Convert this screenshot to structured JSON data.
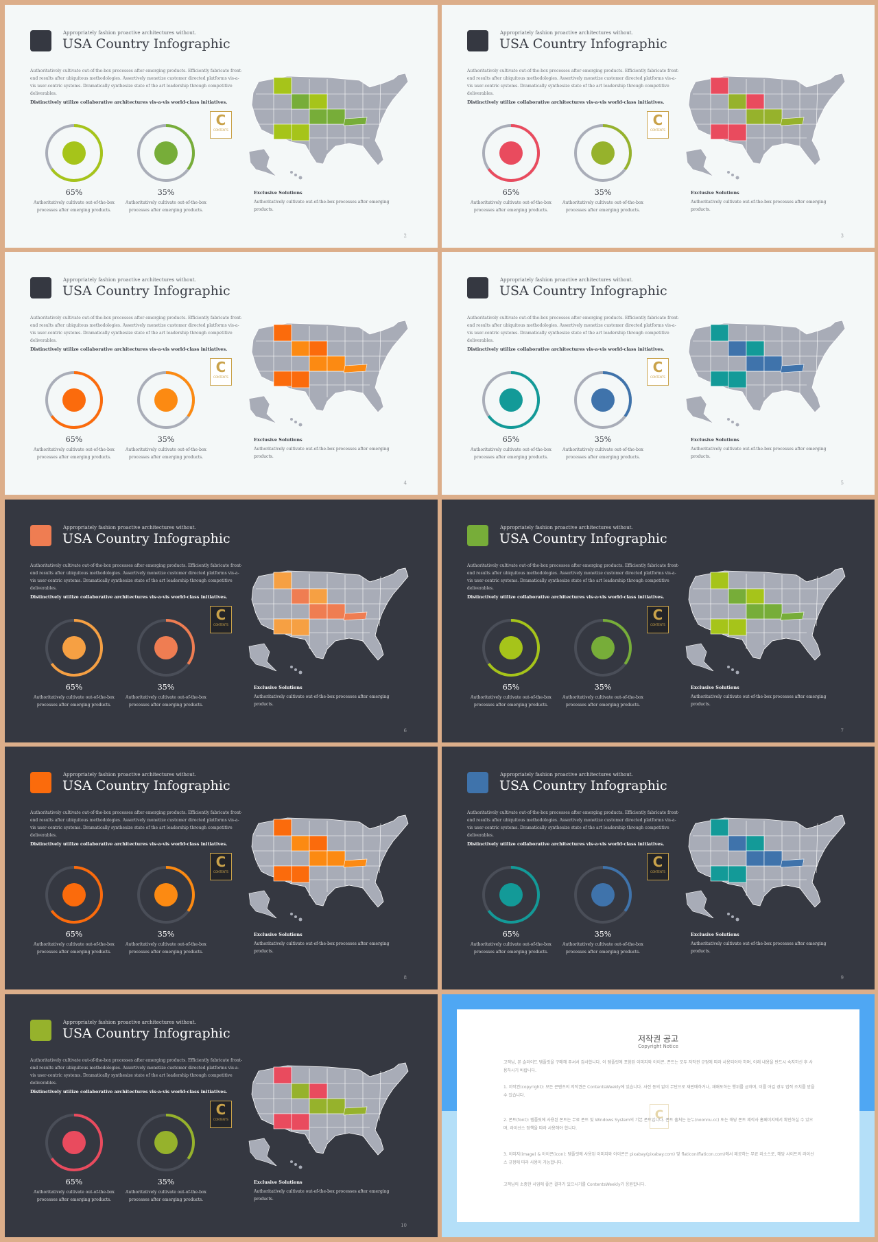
{
  "slide_text": {
    "subtitle": "Appropriately fashion proactive architectures without.",
    "title": "USA Country Infographic",
    "description": "Authoritatively cultivate out-of-the-box processes after emerging products. Efficiently fabricate front-end results after ubiquitous methodologies. Assertively monetize customer directed platforms vis-a-vis user-centric systems. Dramatically synthesize state of the art leadership through competitive deliverables.",
    "bold_line": "Distinctively utilize collaborative architectures vis-a-vis world-class initiatives.",
    "percent_1": "65%",
    "percent_2": "35%",
    "ring_text": "Authoritatively cultivate out-of-the-box processes after emerging products.",
    "logo_letter": "C",
    "logo_word": "CONTENTS",
    "exclusive_title": "Exclusive Solutions",
    "exclusive_text": "Authoritatively cultivate out-of-the-box processes after emerging products."
  },
  "slides": [
    {
      "theme": "light",
      "page": "2",
      "square": "#353841",
      "ring1": "#a6c41a",
      "ring2": "#77ad39",
      "map_a": "#a6c41a",
      "map_b": "#77ad39"
    },
    {
      "theme": "light",
      "page": "3",
      "square": "#353841",
      "ring1": "#e94b5e",
      "ring2": "#96b22c",
      "map_a": "#e94b5e",
      "map_b": "#96b22c"
    },
    {
      "theme": "light",
      "page": "4",
      "square": "#353841",
      "ring1": "#fb6b0c",
      "ring2": "#fc8a12",
      "map_a": "#fb6b0c",
      "map_b": "#fc8a12"
    },
    {
      "theme": "light",
      "page": "5",
      "square": "#353841",
      "ring1": "#139a98",
      "ring2": "#3f73ab",
      "map_a": "#139a98",
      "map_b": "#3f73ab"
    },
    {
      "theme": "dark",
      "page": "6",
      "square": "#ef7d52",
      "ring1": "#f6a043",
      "ring2": "#ef7d52",
      "map_a": "#f6a043",
      "map_b": "#ef7d52"
    },
    {
      "theme": "dark",
      "page": "7",
      "square": "#77ad39",
      "ring1": "#a6c41a",
      "ring2": "#77ad39",
      "map_a": "#a6c41a",
      "map_b": "#77ad39"
    },
    {
      "theme": "dark",
      "page": "8",
      "square": "#fb6b0c",
      "ring1": "#fb6b0c",
      "ring2": "#fc8a12",
      "map_a": "#fb6b0c",
      "map_b": "#fc8a12"
    },
    {
      "theme": "dark",
      "page": "9",
      "square": "#3f73ab",
      "ring1": "#139a98",
      "ring2": "#3f73ab",
      "map_a": "#139a98",
      "map_b": "#3f73ab"
    },
    {
      "theme": "dark",
      "page": "10",
      "square": "#96b22c",
      "ring1": "#e94b5e",
      "ring2": "#96b22c",
      "map_a": "#e94b5e",
      "map_b": "#96b22c"
    }
  ],
  "copyright": {
    "title": "저작권 공고",
    "subtitle": "Copyright Notice",
    "intro": "고객님, 본 슬라이드 템플릿을 구매해 주셔서 감사합니다. 이 템플릿에 포함된 이미지와 아이콘, 폰트는 모두 저작권 규정에 따라 사용되어야 하며, 아래 내용을 반드시 숙지하신 후 사용하시기 바랍니다.",
    "p1": "1. 저작권(copyright): 모든 콘텐츠의 저작권은 ContentsWeekly에 있습니다. 사전 동의 없이 무단으로 재판매하거나, 재배포하는 행위를 금하며, 이를 어길 경우 법적 조치를 받을 수 있습니다.",
    "p2": "2. 폰트(font): 템플릿에 사용된 폰트는 무료 폰트 및 Windows System의 기본 폰트입니다. 폰트 출처는 눈누(noonnu.cc) 또는 해당 폰트 제작사 홈페이지에서 확인하실 수 있으며, 라이선스 정책을 따라 사용해야 합니다.",
    "p3": "3. 이미지(image) & 아이콘(icon): 템플릿에 사용된 이미지와 아이콘은 pixabay(pixabay.com) 및 flaticon(flaticon.com)에서 제공하는 무료 리소스로, 해당 사이트의 라이선스 규정에 따라 사용이 가능합니다.",
    "outro": "고객님의 소중한 사업에 좋은 결과가 있으시기를 ContentsWeekly가 응원합니다.",
    "logo_letter": "C"
  }
}
